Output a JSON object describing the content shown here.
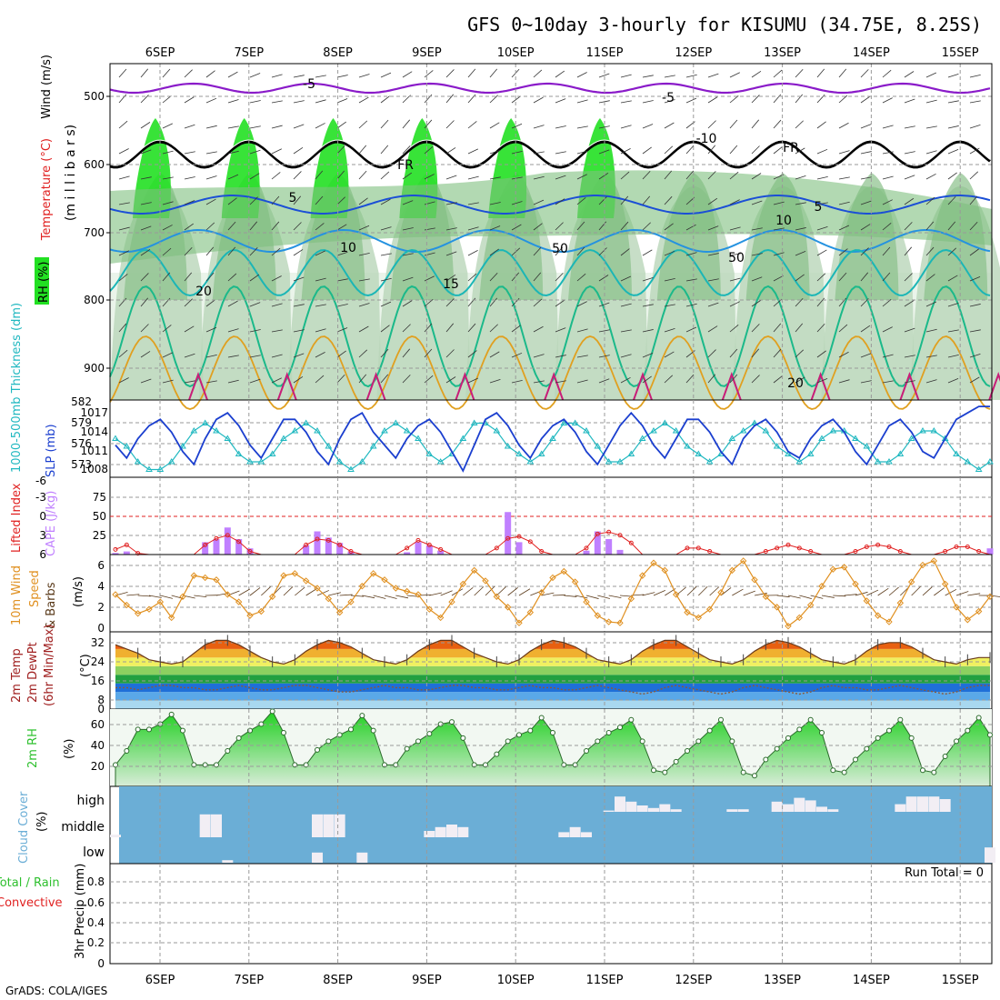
{
  "title": "GFS 0~10day 3-hourly for KISUMU (34.75E, 8.25S)",
  "footer": "GrADS: COLA/IGES",
  "date_labels": [
    "6SEP",
    "7SEP",
    "8SEP",
    "9SEP",
    "10SEP",
    "11SEP",
    "12SEP",
    "13SEP",
    "14SEP",
    "15SEP"
  ],
  "colors": {
    "temp_freeze": "#000000",
    "temp_m5": "#8a1bc9",
    "temp_5": "#1b4fd6",
    "temp_10": "#2592e0",
    "temp_15": "#1bb6b6",
    "temp_20": "#1bb98a",
    "temp_warm": "#e0a020",
    "temp_hot": "#c81e78",
    "rh_high": "#22e022",
    "rh_mid": "#8ccf8c",
    "rh_low": "#e8f3e8",
    "slp": "#1b3fcf",
    "thickness": "#20b8c0",
    "cape": "#c080ff",
    "lifted": "#e02020",
    "wind": "#e09020",
    "barb": "#5a3a1a",
    "cloud": "#6baed6",
    "rh2m": "#2ec02e"
  },
  "panels": {
    "upper": {
      "labels": {
        "wind": "Wind (m/s)",
        "temp": "Temperature (°C)",
        "millibars": "(m i l l i b a r s)",
        "rh": "RH (%)"
      },
      "y_ticks": [
        "500",
        "600",
        "700",
        "800",
        "900"
      ],
      "contour_labels": [
        "-5",
        "-5",
        "FR",
        "FR",
        "5",
        "5",
        "10",
        "10",
        "15",
        "20",
        "20",
        "50",
        "50",
        "-10"
      ]
    },
    "slp": {
      "labels": {
        "thickness": "1000-500mb Thickness (dm)",
        "slp": "SLP (mb)"
      },
      "left_ticks": [
        "582",
        "579",
        "576",
        "573"
      ],
      "right_ticks": [
        "1017",
        "1014",
        "1011",
        "1008"
      ]
    },
    "cape": {
      "labels": {
        "lifted": "Lifted Index",
        "cape": "CAPE (J/kg)"
      },
      "left_ticks": [
        "6",
        "3",
        "0",
        "-3",
        "-6"
      ],
      "right_ticks": [
        "75",
        "50",
        "25"
      ]
    },
    "wind": {
      "labels": {
        "a": "10m Wind",
        "b": "Speed",
        "c": "& Barbs",
        "unit": "(m/s)"
      },
      "ticks": [
        "6",
        "4",
        "2",
        "0"
      ]
    },
    "temp": {
      "labels": {
        "a": "2m Temp",
        "b": "2m DewPt",
        "c": "(6hr Min/Max)",
        "unit": "(°C)"
      },
      "ticks": [
        "32",
        "24",
        "16",
        "8",
        "0"
      ]
    },
    "rh": {
      "labels": {
        "a": "2m RH",
        "unit": "(%)"
      },
      "ticks": [
        "60",
        "40",
        "20"
      ]
    },
    "cloud": {
      "labels": {
        "a": "Cloud Cover",
        "unit": "(%)"
      },
      "rows": [
        "high",
        "middle",
        "low"
      ]
    },
    "precip": {
      "labels": {
        "a": "Total / Rain",
        "b": "Convective",
        "c": "3hr Precip (mm)"
      },
      "ticks": [
        "0.8",
        "0.6",
        "0.4",
        "0.2",
        "0"
      ],
      "run_total": "Run Total = 0"
    }
  },
  "chart_data": [
    {
      "type": "line",
      "name_hint": "slp",
      "y": [
        1012,
        1010,
        1013,
        1015,
        1016,
        1014,
        1011,
        1009,
        1013,
        1016,
        1017,
        1015,
        1012,
        1010,
        1013,
        1016,
        1016,
        1014,
        1011,
        1009,
        1013,
        1016,
        1017,
        1014,
        1012,
        1010,
        1013,
        1015,
        1016,
        1014,
        1011,
        1008,
        1012,
        1016,
        1017,
        1015,
        1012,
        1010,
        1013,
        1015,
        1016,
        1014,
        1011,
        1009,
        1012,
        1015,
        1017,
        1015,
        1012,
        1010,
        1013,
        1016,
        1016,
        1014,
        1011,
        1009,
        1013,
        1015,
        1016,
        1014,
        1011,
        1010,
        1013,
        1015,
        1016,
        1014,
        1011,
        1009,
        1012,
        1015,
        1016,
        1014,
        1011,
        1010,
        1013,
        1016,
        1017,
        1018,
        1018
      ],
      "ylim": [
        1007,
        1019
      ]
    },
    {
      "type": "line",
      "name_hint": "thickness",
      "y": [
        577,
        576,
        574,
        573,
        573,
        574,
        576,
        578,
        579,
        578,
        577,
        575,
        574,
        574,
        575,
        577,
        578,
        579,
        578,
        576,
        574,
        573,
        574,
        576,
        578,
        579,
        578,
        577,
        575,
        574,
        575,
        577,
        579,
        579,
        578,
        576,
        575,
        574,
        575,
        577,
        579,
        579,
        578,
        576,
        574,
        574,
        575,
        577,
        578,
        579,
        578,
        576,
        575,
        574,
        575,
        577,
        578,
        579,
        578,
        576,
        575,
        574,
        575,
        577,
        578,
        578,
        577,
        576,
        574,
        574,
        575,
        577,
        578,
        578,
        577,
        575,
        574,
        573,
        574
      ],
      "ylim": [
        572,
        582
      ]
    },
    {
      "type": "bar",
      "name_hint": "cape",
      "values": [
        2,
        4,
        0,
        0,
        0,
        0,
        0,
        0,
        16,
        20,
        35,
        20,
        8,
        0,
        0,
        0,
        0,
        12,
        30,
        22,
        15,
        4,
        0,
        0,
        0,
        0,
        3,
        16,
        12,
        5,
        0,
        0,
        0,
        0,
        0,
        55,
        16,
        0,
        0,
        0,
        0,
        0,
        5,
        30,
        20,
        6,
        0,
        0,
        0,
        0,
        0,
        0,
        0,
        0,
        0,
        0,
        0,
        0,
        0,
        0,
        0,
        0,
        0,
        0,
        0,
        0,
        0,
        0,
        0,
        0,
        0,
        0,
        0,
        0,
        0,
        0,
        0,
        0,
        8
      ],
      "ylim": [
        0,
        100
      ]
    },
    {
      "type": "line",
      "name_hint": "lifted_index",
      "y": [
        5.2,
        4.5,
        5.8,
        6,
        6,
        6,
        6,
        6,
        4.5,
        3.5,
        3,
        4,
        5.5,
        6,
        6,
        6,
        6,
        4.5,
        3.6,
        3.8,
        4.5,
        5.5,
        6,
        6,
        6,
        6,
        5,
        3.8,
        4.5,
        5.2,
        6,
        6,
        6,
        6,
        5,
        3.5,
        3.2,
        4,
        5.5,
        6,
        6,
        6,
        5,
        2.8,
        2.5,
        3,
        4.2,
        6,
        6,
        6,
        6,
        5,
        5,
        5.5,
        6,
        6,
        6,
        6,
        5.5,
        5,
        4.5,
        5,
        5.5,
        6,
        6,
        6,
        5.5,
        4.8,
        4.5,
        4.8,
        5.5,
        6,
        6,
        6,
        5.5,
        4.8,
        4.8,
        5.5,
        6
      ],
      "ylim": [
        -6,
        6
      ]
    },
    {
      "type": "line",
      "name_hint": "wind_speed",
      "y": [
        3.2,
        2.2,
        1.4,
        1.8,
        2.5,
        1,
        3,
        5,
        4.8,
        4.6,
        3.2,
        2.5,
        1.2,
        1.6,
        3,
        5,
        5.2,
        4.5,
        3.8,
        2.8,
        1.5,
        2.5,
        4,
        5.2,
        4.6,
        3.8,
        3.5,
        3.2,
        1.8,
        1,
        2.5,
        4.2,
        5.5,
        4.5,
        3,
        2,
        0.5,
        1.5,
        3.4,
        4.8,
        5.4,
        4.4,
        2.5,
        1.2,
        0.6,
        0.5,
        2.8,
        5,
        6.2,
        5.5,
        3.2,
        1.5,
        1,
        1.8,
        3.4,
        5.5,
        6.4,
        4.6,
        3,
        2,
        0.2,
        1,
        2.2,
        4,
        5.6,
        5.8,
        4.2,
        2.6,
        1.2,
        0.6,
        2.4,
        4.4,
        6,
        6.4,
        4.2,
        2,
        0.8,
        1.6,
        3
      ],
      "ylim": [
        0,
        7
      ]
    },
    {
      "type": "area",
      "name_hint": "temp_2m",
      "y": [
        30,
        28,
        26,
        23,
        22,
        21,
        22,
        26,
        30,
        32,
        32,
        30,
        27,
        24,
        22,
        21,
        23,
        27,
        30,
        32,
        31,
        29,
        26,
        23,
        22,
        21,
        23,
        27,
        30,
        32,
        32,
        29,
        26,
        24,
        22,
        21,
        23,
        27,
        30,
        32,
        31,
        29,
        26,
        23,
        22,
        21,
        23,
        27,
        30,
        32,
        32,
        29,
        26,
        23,
        22,
        21,
        23,
        27,
        30,
        32,
        31,
        29,
        26,
        23,
        22,
        21,
        23,
        27,
        30,
        31,
        31,
        29,
        26,
        23,
        22,
        21,
        23,
        24,
        24
      ],
      "ylim": [
        0,
        36
      ]
    },
    {
      "type": "line",
      "name_hint": "dewpoint_2m",
      "y": [
        10,
        10,
        9,
        10,
        11,
        11,
        10,
        10,
        9,
        9,
        10,
        11,
        10,
        9,
        9,
        10,
        11,
        11,
        10,
        9,
        8,
        8,
        9,
        10,
        11,
        10,
        10,
        9,
        9,
        10,
        11,
        11,
        10,
        10,
        9,
        9,
        10,
        11,
        10,
        10,
        9,
        9,
        10,
        11,
        10,
        9,
        8,
        7,
        8,
        10,
        11,
        10,
        9,
        8,
        7,
        8,
        10,
        11,
        10,
        9,
        8,
        7,
        8,
        10,
        11,
        10,
        10,
        9,
        9,
        10,
        11,
        10,
        9,
        8,
        7,
        8,
        10,
        11,
        11
      ],
      "ylim": [
        0,
        36
      ]
    },
    {
      "type": "area",
      "name_hint": "rh_2m",
      "y": [
        20,
        33,
        53,
        53,
        58,
        67,
        52,
        20,
        20,
        20,
        33,
        45,
        52,
        58,
        70,
        50,
        20,
        20,
        34,
        42,
        48,
        53,
        66,
        52,
        20,
        20,
        35,
        42,
        49,
        58,
        60,
        45,
        20,
        20,
        30,
        42,
        48,
        52,
        64,
        50,
        20,
        20,
        33,
        42,
        50,
        55,
        62,
        42,
        15,
        13,
        23,
        33,
        42,
        52,
        62,
        42,
        13,
        10,
        25,
        35,
        45,
        53,
        62,
        50,
        15,
        13,
        25,
        35,
        45,
        52,
        62,
        45,
        15,
        13,
        28,
        42,
        52,
        64,
        48
      ],
      "ylim": [
        0,
        70
      ]
    },
    {
      "type": "table",
      "name_hint": "cloud_cover_high",
      "values": [
        0,
        0,
        0,
        0,
        0,
        0,
        0,
        0,
        0,
        0,
        0,
        0,
        0,
        0,
        0,
        0,
        0,
        0,
        0,
        0,
        0,
        0,
        0,
        0,
        0,
        0,
        0,
        0,
        0,
        0,
        0,
        0,
        0,
        0,
        0,
        0,
        0,
        0,
        0,
        0,
        0,
        0,
        0,
        0,
        5,
        60,
        40,
        25,
        15,
        30,
        10,
        0,
        0,
        0,
        0,
        10,
        10,
        0,
        0,
        40,
        30,
        55,
        45,
        20,
        10,
        0,
        0,
        0,
        0,
        0,
        30,
        60,
        60,
        60,
        50,
        0,
        0,
        0,
        0
      ]
    },
    {
      "type": "table",
      "name_hint": "cloud_cover_mid",
      "values": [
        10,
        0,
        0,
        0,
        0,
        0,
        0,
        0,
        90,
        90,
        0,
        0,
        0,
        0,
        0,
        0,
        0,
        0,
        90,
        90,
        90,
        0,
        0,
        0,
        0,
        0,
        0,
        0,
        25,
        40,
        50,
        40,
        0,
        0,
        0,
        0,
        0,
        0,
        0,
        0,
        20,
        40,
        20,
        0,
        0,
        0,
        0,
        0,
        0,
        0,
        0,
        0,
        0,
        0,
        0,
        0,
        0,
        0,
        0,
        0,
        0,
        0,
        0,
        0,
        0,
        0,
        0,
        0,
        0,
        0,
        0,
        0,
        0,
        0,
        0,
        0,
        0,
        0,
        0
      ]
    },
    {
      "type": "table",
      "name_hint": "cloud_cover_low",
      "values": [
        0,
        0,
        0,
        0,
        0,
        0,
        0,
        0,
        0,
        0,
        10,
        0,
        0,
        0,
        0,
        0,
        0,
        0,
        40,
        0,
        0,
        0,
        40,
        0,
        0,
        0,
        0,
        0,
        0,
        0,
        0,
        0,
        0,
        0,
        0,
        0,
        0,
        0,
        0,
        0,
        0,
        0,
        0,
        0,
        0,
        0,
        0,
        0,
        0,
        0,
        0,
        0,
        0,
        0,
        0,
        0,
        0,
        0,
        0,
        0,
        0,
        0,
        0,
        0,
        0,
        0,
        0,
        0,
        0,
        0,
        0,
        0,
        0,
        0,
        0,
        0,
        0,
        0,
        60
      ]
    },
    {
      "type": "bar",
      "name_hint": "precip_3hr",
      "values": [
        0,
        0,
        0,
        0,
        0,
        0,
        0,
        0,
        0,
        0
      ],
      "ylim": [
        0,
        1
      ]
    }
  ]
}
